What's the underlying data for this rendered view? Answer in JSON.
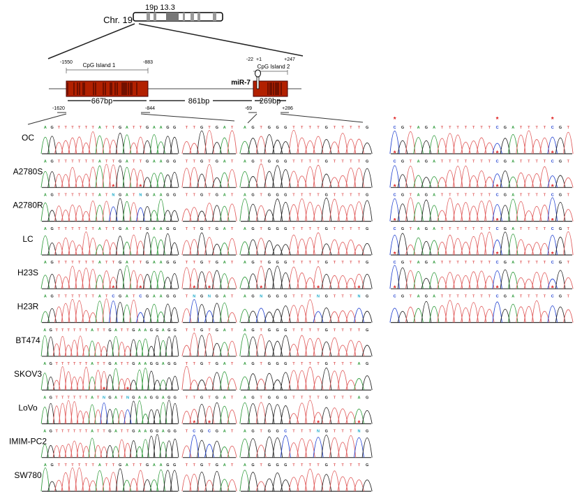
{
  "chromosome": {
    "label": "Chr. 19",
    "band": "19p 13.3"
  },
  "gene_map": {
    "island1": {
      "label": "CpG Island 1",
      "start": "-1550",
      "end": "-883",
      "length": "667bp"
    },
    "gap": "861bp",
    "island2": {
      "label": "CpG Island 2",
      "start": "-22",
      "tss": "+1",
      "end": "+247",
      "length": "269bp"
    },
    "mirna": "miR-7",
    "primers": [
      "-1620",
      "-844",
      "-69",
      "+286"
    ]
  },
  "colors": {
    "island": "#b22000",
    "A": "#2e9a3a",
    "C": "#2040d0",
    "G": "#222222",
    "T": "#e05a5a",
    "N": "#18a8c8",
    "star": "#e02020"
  },
  "rows": [
    {
      "label": "OC",
      "panels": [
        "AGTTTTTTATTGATTGAAGG",
        "TTGTGAT",
        "AGTGGGTTTTGTTTTG",
        "CGTAGATTTTTTTCGATTTTCGT"
      ],
      "marks": [
        [],
        [],
        [],
        [
          0,
          13,
          20
        ]
      ]
    },
    {
      "label": "A2780S",
      "panels": [
        "AGTTTTTTATTGATTGAAGG",
        "TTGTGAT",
        "AGTGGGTTTTGTTTTG",
        "CGTAGATTTTTTTCGATTTTCGT"
      ],
      "marks": [
        [],
        [],
        [],
        [
          0,
          13,
          20
        ]
      ]
    },
    {
      "label": "A2780R",
      "panels": [
        "AGTTTTTTATNGATNGAAGG",
        "TTGTGAT",
        "AGTGGGTTTTGTTTTG",
        "CGTAGATTTTTTTCGATTTTCGT"
      ],
      "marks": [
        [
          10,
          14
        ],
        [],
        [],
        [
          0,
          13,
          20
        ]
      ]
    },
    {
      "label": "LC",
      "panels": [
        "AGTTTTTTATTGATTGAAGG",
        "TTGTGAT",
        "AGTGGGTTTTGTTTTG",
        "CGTAGATTTTTTTCGATTTTCGT"
      ],
      "marks": [
        [],
        [],
        [],
        [
          0,
          13,
          20
        ]
      ]
    },
    {
      "label": "H23S",
      "panels": [
        "AGTTTTTTATTGATTGAAGG",
        "TTGTGAT",
        "AGTGGGTTTTGTTTTG",
        "CGTAGATTTTTTTCGATTTTCGT"
      ],
      "marks": [
        [],
        [],
        [],
        [
          0,
          13,
          20
        ]
      ]
    },
    {
      "label": "H23R",
      "panels": [
        "AGTTTTTTATCGATCGAAGG",
        "TNGNGAT",
        "AGNGGGTTTNGTTTNG",
        "CGTAGATTTTTTTCGATTTTCGT"
      ],
      "marks": [
        [
          10,
          14
        ],
        [
          1,
          3
        ],
        [
          2,
          9,
          14
        ],
        [
          0,
          13,
          20
        ]
      ]
    },
    {
      "label": "BT474",
      "panels": [
        "AGTTTTTTATTGATTGAAGGAGG",
        "TTGTGAT",
        "AGTGGGTTTTGTTTTG"
      ],
      "marks": [
        [],
        [],
        []
      ]
    },
    {
      "label": "SKOV3",
      "panels": [
        "AGTTTTTTATTGATTGAAGGAGG",
        "TTGTGAT",
        "AGTGGGTTTTGTTTAG"
      ],
      "marks": [
        [],
        [],
        []
      ]
    },
    {
      "label": "LoVo",
      "panels": [
        "AGTTTTTTATNGATNGAAGGAGG",
        "TTGTGAT",
        "AGTGGGTTTTGTTTAG"
      ],
      "marks": [
        [
          10,
          14
        ],
        [],
        []
      ]
    },
    {
      "label": "IMIM-PC2",
      "panels": [
        "AGTTTTTTATTGATTGAAGGAGG",
        "TCGCGAT",
        "AGTGGCTTTNGTTTNG"
      ],
      "marks": [
        [],
        [
          1,
          3
        ],
        [
          9,
          14
        ]
      ]
    },
    {
      "label": "SW780",
      "panels": [
        "AGTTTTTTATTGATTGAAGG",
        "TTGTGAT",
        "AGTGGGTTTTGTTTTG"
      ],
      "marks": [
        [],
        [],
        []
      ]
    }
  ]
}
